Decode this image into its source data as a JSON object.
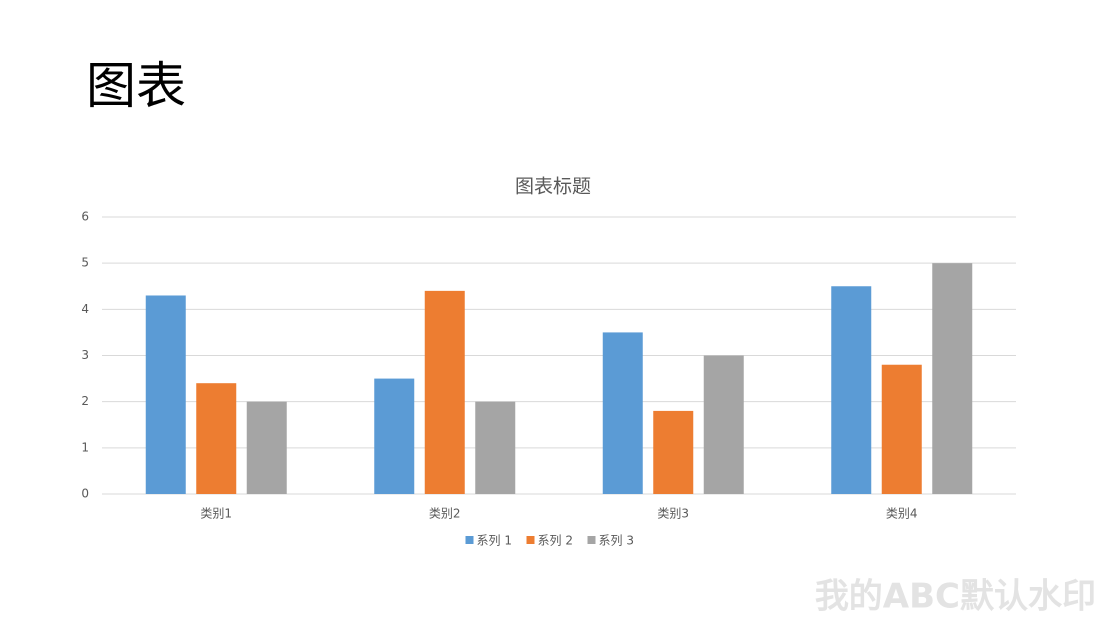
{
  "slide_title": "图表",
  "watermark": "我的ABC默认水印",
  "chart_data": {
    "type": "bar",
    "title": "图表标题",
    "categories": [
      "类别1",
      "类别2",
      "类别3",
      "类别4"
    ],
    "series": [
      {
        "name": "系列 1",
        "color": "#5b9bd5",
        "values": [
          4.3,
          2.5,
          3.5,
          4.5
        ]
      },
      {
        "name": "系列 2",
        "color": "#ed7d31",
        "values": [
          2.4,
          4.4,
          1.8,
          2.8
        ]
      },
      {
        "name": "系列 3",
        "color": "#a5a5a5",
        "values": [
          2,
          2,
          3,
          5
        ]
      }
    ],
    "ylim": [
      0,
      6
    ],
    "yticks": [
      0,
      1,
      2,
      3,
      4,
      5,
      6
    ],
    "grid": true,
    "legend": "bottom"
  }
}
